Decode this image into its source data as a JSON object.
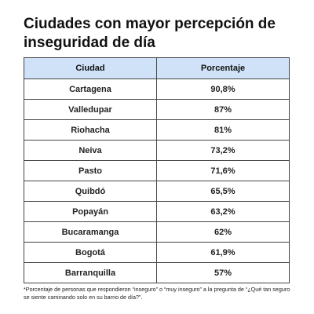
{
  "title": "Ciudades con mayor percepción de inseguridad de día",
  "chart_data": {
    "type": "table",
    "columns": [
      "Ciudad",
      "Porcentaje"
    ],
    "rows": [
      [
        "Cartagena",
        "90,8%"
      ],
      [
        "Valledupar",
        "87%"
      ],
      [
        "Riohacha",
        "81%"
      ],
      [
        "Neiva",
        "73,2%"
      ],
      [
        "Pasto",
        "71,6%"
      ],
      [
        "Quibdó",
        "65,5%"
      ],
      [
        "Popayán",
        "63,2%"
      ],
      [
        "Bucaramanga",
        "62%"
      ],
      [
        "Bogotá",
        "61,9%"
      ],
      [
        "Barranquilla",
        "57%"
      ]
    ],
    "values": [
      90.8,
      87,
      81,
      73.2,
      71.6,
      65.5,
      63.2,
      62,
      61.9,
      57
    ],
    "header_color": "#cfe2f7"
  },
  "footnote": "*Porcentaje de personas que respondieron “inseguro” o “muy inseguro” a la pregunta de “¿Qué tan seguro se siente caminando solo en su barrio de día?”."
}
